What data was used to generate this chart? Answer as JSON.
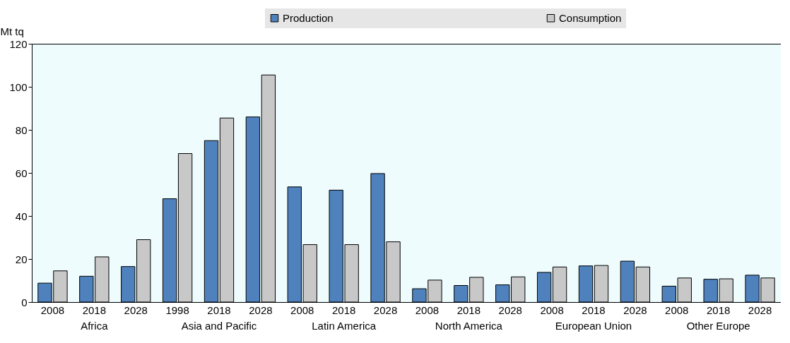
{
  "chart_data": {
    "type": "bar",
    "ylabel": "Mt tq",
    "categories": [
      "2008",
      "2018",
      "2028",
      "1998",
      "2018",
      "2028",
      "2008",
      "2018",
      "2028",
      "2008",
      "2018",
      "2028",
      "2008",
      "2018",
      "2028",
      "2008",
      "2018",
      "2028"
    ],
    "series": [
      {
        "name": "Production",
        "color": "#4f81bd",
        "values": [
          8.8,
          12,
          16.5,
          48,
          75,
          86,
          53.5,
          52,
          59.7,
          6.2,
          7.7,
          8,
          13.8,
          16.8,
          19,
          7.4,
          10.6,
          12.5
        ]
      },
      {
        "name": "Consumption",
        "color": "#c8c8c8",
        "values": [
          14.5,
          21,
          29,
          69,
          85.5,
          105.5,
          26.7,
          26.7,
          28,
          10.2,
          11.5,
          11.7,
          16.3,
          17,
          16.3,
          11.2,
          10.8,
          11.2
        ]
      }
    ],
    "annotations": [
      "Africa",
      "Asia and Pacific",
      "Latin America",
      "North America",
      "European Union",
      "Other Europe"
    ],
    "ylim": [
      0,
      120
    ],
    "yticks": [
      0,
      20,
      40,
      60,
      80,
      100,
      120
    ],
    "grid": false,
    "legend": "top"
  }
}
